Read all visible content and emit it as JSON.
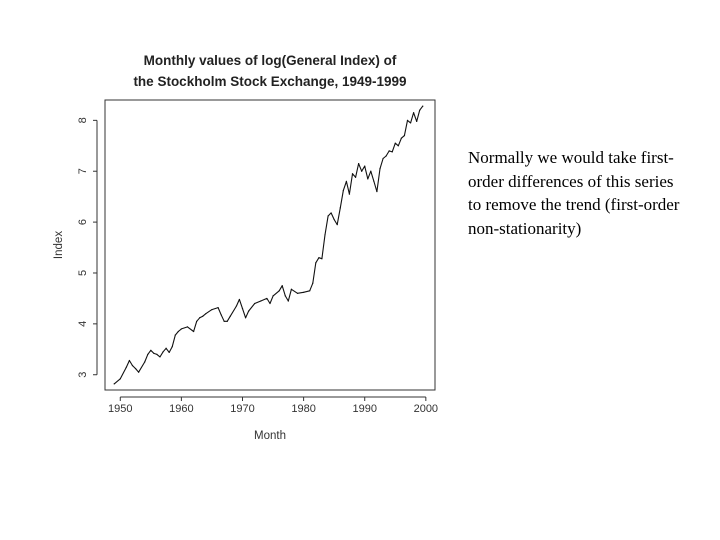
{
  "chart_data": {
    "type": "line",
    "title_line1": "Monthly values of log(General Index) of",
    "title_line2": "the Stockholm Stock Exchange, 1949-1999",
    "xlabel": "Month",
    "ylabel": "Index",
    "xlim": [
      1947.5,
      2001.5
    ],
    "ylim": [
      2.7,
      8.4
    ],
    "x_ticks": [
      1950,
      1960,
      1970,
      1980,
      1990,
      2000
    ],
    "x_tick_labels": [
      "1950",
      "1960",
      "1970",
      "1980",
      "1990",
      "2000"
    ],
    "y_ticks": [
      3,
      4,
      5,
      6,
      7,
      8
    ],
    "y_tick_labels": [
      "3",
      "4",
      "5",
      "6",
      "7",
      "8"
    ],
    "series": [
      {
        "name": "log(General Index)",
        "x": [
          1949.0,
          1950.0,
          1951.0,
          1951.5,
          1952.0,
          1952.5,
          1953.0,
          1954.0,
          1954.5,
          1955.0,
          1955.5,
          1956.0,
          1956.5,
          1957.0,
          1957.5,
          1958.0,
          1958.5,
          1959.0,
          1959.5,
          1960.0,
          1961.0,
          1962.0,
          1962.5,
          1963.0,
          1963.5,
          1964.0,
          1965.0,
          1966.0,
          1966.5,
          1967.0,
          1967.5,
          1968.0,
          1969.0,
          1969.5,
          1970.0,
          1970.5,
          1971.0,
          1972.0,
          1973.0,
          1974.0,
          1974.5,
          1975.0,
          1976.0,
          1976.5,
          1977.0,
          1977.5,
          1978.0,
          1979.0,
          1980.0,
          1981.0,
          1981.5,
          1982.0,
          1982.5,
          1983.0,
          1983.5,
          1984.0,
          1984.5,
          1985.0,
          1985.5,
          1986.0,
          1986.5,
          1987.0,
          1987.5,
          1988.0,
          1988.5,
          1989.0,
          1989.5,
          1990.0,
          1990.5,
          1991.0,
          1991.5,
          1992.0,
          1992.5,
          1993.0,
          1993.5,
          1994.0,
          1994.5,
          1995.0,
          1995.5,
          1996.0,
          1996.5,
          1997.0,
          1997.5,
          1998.0,
          1998.5,
          1999.0,
          1999.5
        ],
        "values": [
          2.82,
          2.92,
          3.15,
          3.28,
          3.18,
          3.12,
          3.05,
          3.25,
          3.4,
          3.48,
          3.42,
          3.4,
          3.35,
          3.45,
          3.52,
          3.44,
          3.55,
          3.78,
          3.85,
          3.9,
          3.94,
          3.85,
          4.05,
          4.12,
          4.15,
          4.2,
          4.28,
          4.32,
          4.18,
          4.05,
          4.05,
          4.15,
          4.35,
          4.48,
          4.3,
          4.12,
          4.25,
          4.4,
          4.45,
          4.5,
          4.4,
          4.55,
          4.65,
          4.75,
          4.55,
          4.45,
          4.68,
          4.6,
          4.62,
          4.65,
          4.8,
          5.2,
          5.3,
          5.28,
          5.75,
          6.12,
          6.18,
          6.05,
          5.95,
          6.28,
          6.62,
          6.8,
          6.55,
          6.95,
          6.88,
          7.15,
          7.0,
          7.1,
          6.85,
          7.0,
          6.8,
          6.6,
          7.05,
          7.25,
          7.3,
          7.4,
          7.38,
          7.55,
          7.5,
          7.65,
          7.7,
          8.0,
          7.95,
          8.15,
          7.98,
          8.2,
          8.28
        ]
      }
    ]
  },
  "note": {
    "text": "Normally we would take first-order differences of this series to remove the trend (first-order non-stationarity)"
  }
}
